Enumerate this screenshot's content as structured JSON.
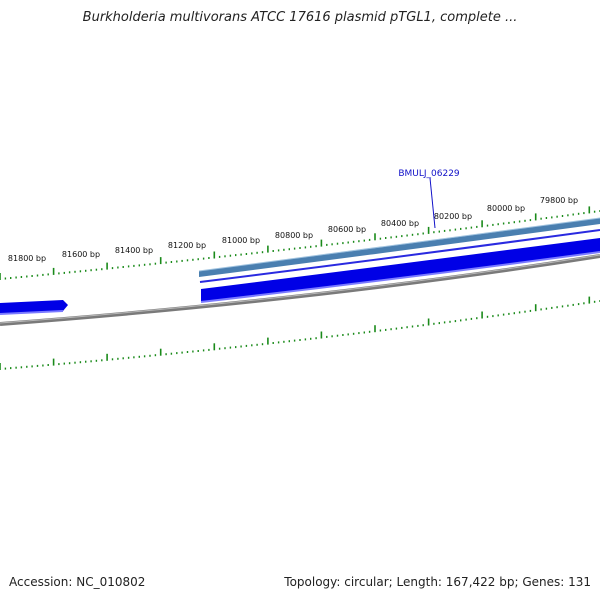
{
  "title": "Burkholderia multivorans ATCC 17616 plasmid pTGL1, complete ...",
  "accession": "Accession: NC_010802",
  "summary": "Topology: circular; Length: 167,422 bp; Genes: 131",
  "gene_label": "BMULJ_06229",
  "tick_labels": [
    "81800 bp",
    "81600 bp",
    "81400 bp",
    "81200 bp",
    "81000 bp",
    "80800 bp",
    "80600 bp",
    "80400 bp",
    "80200 bp",
    "80000 bp",
    "79800 bp"
  ],
  "colors": {
    "gene_dark": "#0000e6",
    "gene_light": "#6f6fff",
    "gene_steel": "#4a7fb0",
    "backbone": "#7a7a7a",
    "tick": "#1a8a1a"
  }
}
